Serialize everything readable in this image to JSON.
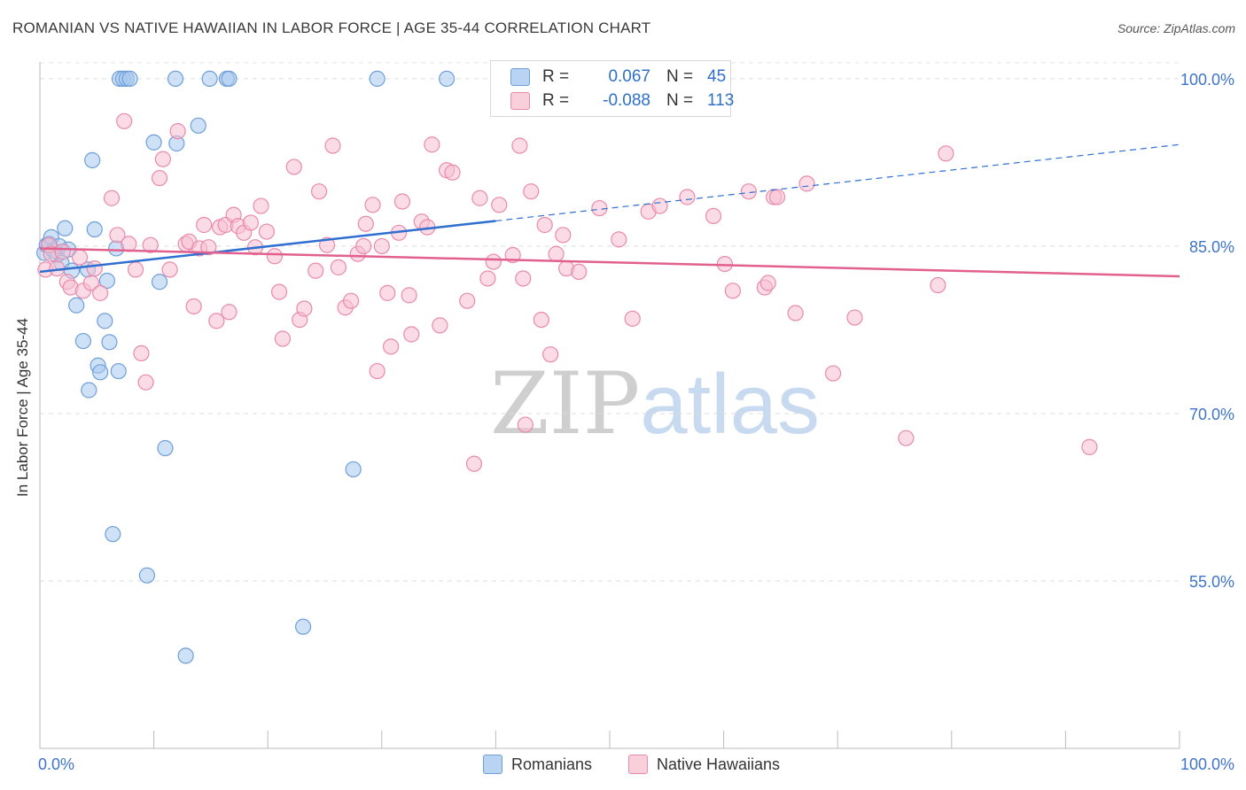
{
  "title": "ROMANIAN VS NATIVE HAWAIIAN IN LABOR FORCE | AGE 35-44 CORRELATION CHART",
  "source": "Source: ZipAtlas.com",
  "watermark": {
    "zip": "ZIP",
    "atlas": "atlas"
  },
  "legend": {
    "romanians": {
      "r_label": "R =",
      "r_value": "0.067",
      "n_label": "N =",
      "n_value": "45"
    },
    "hawaiians": {
      "r_label": "R =",
      "r_value": "-0.088",
      "n_label": "N =",
      "n_value": "113"
    }
  },
  "bottom_legend": {
    "romanians": "Romanians",
    "hawaiians": "Native Hawaiians"
  },
  "colors": {
    "blue_fill": "#a8c8ee",
    "blue_stroke": "#6f9fd8",
    "blue_line": "#2f6fd0",
    "pink_fill": "#f7bfd1",
    "pink_stroke": "#e98aab",
    "pink_line": "#e2608e",
    "axis_text": "#3f74c8",
    "grid": "#dddddd"
  },
  "chart_data": {
    "type": "scatter",
    "title": "ROMANIAN VS NATIVE HAWAIIAN IN LABOR FORCE | AGE 35-44 CORRELATION CHART",
    "xlabel": "",
    "ylabel": "In Labor Force | Age 35-44",
    "xlim": [
      0,
      100
    ],
    "ylim": [
      40,
      101.5
    ],
    "x_tick_labels": [
      "0.0%",
      "100.0%"
    ],
    "y_ticks": [
      55,
      70,
      85,
      100
    ],
    "y_tick_labels": [
      "55.0%",
      "70.0%",
      "85.0%",
      "100.0%"
    ],
    "series": [
      {
        "name": "Romanians",
        "R": 0.067,
        "N": 45,
        "trend": {
          "x0": 0,
          "y0": 82.7,
          "x1": 100,
          "y1": 94.1,
          "solid_until": 40
        },
        "points": [
          [
            0.4,
            84.4
          ],
          [
            0.6,
            85.1
          ],
          [
            0.8,
            85.2
          ],
          [
            1.0,
            85.8
          ],
          [
            1.2,
            84.6
          ],
          [
            1.5,
            84.2
          ],
          [
            1.7,
            85.0
          ],
          [
            1.9,
            83.5
          ],
          [
            2.2,
            86.6
          ],
          [
            2.5,
            84.7
          ],
          [
            2.8,
            82.8
          ],
          [
            3.2,
            79.7
          ],
          [
            3.8,
            76.5
          ],
          [
            4.2,
            82.9
          ],
          [
            4.3,
            72.1
          ],
          [
            4.6,
            92.7
          ],
          [
            4.8,
            86.5
          ],
          [
            5.1,
            74.3
          ],
          [
            5.3,
            73.7
          ],
          [
            5.7,
            78.3
          ],
          [
            5.9,
            81.9
          ],
          [
            6.1,
            76.4
          ],
          [
            6.4,
            59.2
          ],
          [
            6.7,
            84.8
          ],
          [
            6.9,
            73.8
          ],
          [
            7.0,
            100
          ],
          [
            7.3,
            100
          ],
          [
            7.6,
            100
          ],
          [
            7.9,
            100
          ],
          [
            9.4,
            55.5
          ],
          [
            10.0,
            94.3
          ],
          [
            10.5,
            81.8
          ],
          [
            11.0,
            66.9
          ],
          [
            11.9,
            100
          ],
          [
            12.0,
            94.2
          ],
          [
            12.8,
            48.3
          ],
          [
            13.9,
            95.8
          ],
          [
            14.9,
            100
          ],
          [
            16.4,
            100
          ],
          [
            16.6,
            100
          ],
          [
            23.1,
            50.9
          ],
          [
            27.5,
            65.0
          ],
          [
            29.6,
            100
          ],
          [
            35.7,
            100
          ]
        ],
        "stroke": "#6f9fd8",
        "fill": "#a8c8ee"
      },
      {
        "name": "Native Hawaiians",
        "R": -0.088,
        "N": 113,
        "trend": {
          "x0": 0,
          "y0": 84.8,
          "x1": 100,
          "y1": 82.3
        },
        "points": [
          [
            0.5,
            82.9
          ],
          [
            0.8,
            85.1
          ],
          [
            1.0,
            84.3
          ],
          [
            1.5,
            83.0
          ],
          [
            2.0,
            84.5
          ],
          [
            2.4,
            81.8
          ],
          [
            2.7,
            81.3
          ],
          [
            3.5,
            84.0
          ],
          [
            3.8,
            81.0
          ],
          [
            4.5,
            81.7
          ],
          [
            4.8,
            83.0
          ],
          [
            5.3,
            80.8
          ],
          [
            6.3,
            89.3
          ],
          [
            6.8,
            86.0
          ],
          [
            7.4,
            96.2
          ],
          [
            7.8,
            85.2
          ],
          [
            8.4,
            82.9
          ],
          [
            8.9,
            75.4
          ],
          [
            9.3,
            72.8
          ],
          [
            9.7,
            85.1
          ],
          [
            10.5,
            91.1
          ],
          [
            10.8,
            92.8
          ],
          [
            11.4,
            82.9
          ],
          [
            12.1,
            95.3
          ],
          [
            12.8,
            85.2
          ],
          [
            13.1,
            85.4
          ],
          [
            13.5,
            79.6
          ],
          [
            14.0,
            84.8
          ],
          [
            14.4,
            86.9
          ],
          [
            14.8,
            84.9
          ],
          [
            15.5,
            78.3
          ],
          [
            15.8,
            86.7
          ],
          [
            16.3,
            86.9
          ],
          [
            16.6,
            79.1
          ],
          [
            17.0,
            87.8
          ],
          [
            17.4,
            86.8
          ],
          [
            17.9,
            86.2
          ],
          [
            18.5,
            87.1
          ],
          [
            18.9,
            84.9
          ],
          [
            19.4,
            88.6
          ],
          [
            19.9,
            86.3
          ],
          [
            20.6,
            84.1
          ],
          [
            21.0,
            80.9
          ],
          [
            21.3,
            76.7
          ],
          [
            22.3,
            92.1
          ],
          [
            22.8,
            78.4
          ],
          [
            23.2,
            79.4
          ],
          [
            24.2,
            82.8
          ],
          [
            24.5,
            89.9
          ],
          [
            25.2,
            85.1
          ],
          [
            25.7,
            94.0
          ],
          [
            26.2,
            83.1
          ],
          [
            26.8,
            79.5
          ],
          [
            27.3,
            80.1
          ],
          [
            27.9,
            84.3
          ],
          [
            28.4,
            85.0
          ],
          [
            28.6,
            87.0
          ],
          [
            29.2,
            88.7
          ],
          [
            29.6,
            73.8
          ],
          [
            30.0,
            85.0
          ],
          [
            30.5,
            80.8
          ],
          [
            30.8,
            76.0
          ],
          [
            31.5,
            86.2
          ],
          [
            31.8,
            89.0
          ],
          [
            32.4,
            80.6
          ],
          [
            32.6,
            77.1
          ],
          [
            33.5,
            87.2
          ],
          [
            34.0,
            86.7
          ],
          [
            34.4,
            94.1
          ],
          [
            35.1,
            77.9
          ],
          [
            35.7,
            91.8
          ],
          [
            36.2,
            91.6
          ],
          [
            37.5,
            80.1
          ],
          [
            38.1,
            65.5
          ],
          [
            38.6,
            89.3
          ],
          [
            39.3,
            82.1
          ],
          [
            39.8,
            83.6
          ],
          [
            40.3,
            88.7
          ],
          [
            41.5,
            84.2
          ],
          [
            42.1,
            94.0
          ],
          [
            42.4,
            82.1
          ],
          [
            42.6,
            69.0
          ],
          [
            43.1,
            89.9
          ],
          [
            44.0,
            78.4
          ],
          [
            44.3,
            86.9
          ],
          [
            44.8,
            75.3
          ],
          [
            45.3,
            84.3
          ],
          [
            45.9,
            86.0
          ],
          [
            46.2,
            83.0
          ],
          [
            47.3,
            82.7
          ],
          [
            49.1,
            88.4
          ],
          [
            50.8,
            85.6
          ],
          [
            52.0,
            78.5
          ],
          [
            53.4,
            88.1
          ],
          [
            54.4,
            88.6
          ],
          [
            56.8,
            89.4
          ],
          [
            59.1,
            87.7
          ],
          [
            60.1,
            83.4
          ],
          [
            60.8,
            81.0
          ],
          [
            62.2,
            89.9
          ],
          [
            63.6,
            81.3
          ],
          [
            63.9,
            81.7
          ],
          [
            64.4,
            89.4
          ],
          [
            64.7,
            89.4
          ],
          [
            66.3,
            79.0
          ],
          [
            67.3,
            90.6
          ],
          [
            69.6,
            73.6
          ],
          [
            71.5,
            78.6
          ],
          [
            76.0,
            67.8
          ],
          [
            78.8,
            81.5
          ],
          [
            79.5,
            93.3
          ],
          [
            92.1,
            67.0
          ]
        ],
        "stroke": "#e98aab",
        "fill": "#f7bfd1"
      }
    ]
  }
}
